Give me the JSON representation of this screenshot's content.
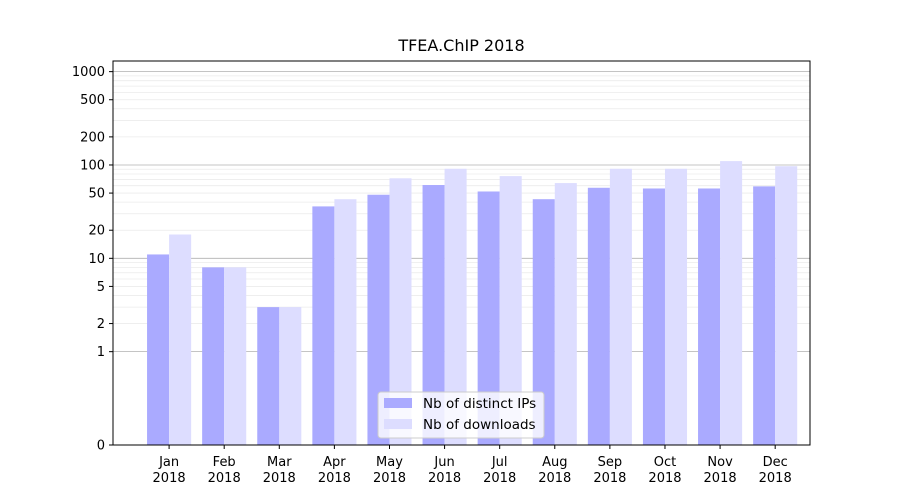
{
  "chart_data": {
    "type": "bar",
    "title": "TFEA.ChIP 2018",
    "xlabel": "",
    "ylabel": "",
    "y_scale": "symlog",
    "ylim": [
      0,
      1300
    ],
    "y_ticks": [
      0,
      1,
      2,
      5,
      10,
      20,
      50,
      100,
      200,
      500,
      1000
    ],
    "y_tick_labels": [
      "0",
      "1",
      "2",
      "5",
      "10",
      "20",
      "50",
      "100",
      "200",
      "500",
      "1000"
    ],
    "categories": [
      [
        "Jan",
        "2018"
      ],
      [
        "Feb",
        "2018"
      ],
      [
        "Mar",
        "2018"
      ],
      [
        "Apr",
        "2018"
      ],
      [
        "May",
        "2018"
      ],
      [
        "Jun",
        "2018"
      ],
      [
        "Jul",
        "2018"
      ],
      [
        "Aug",
        "2018"
      ],
      [
        "Sep",
        "2018"
      ],
      [
        "Oct",
        "2018"
      ],
      [
        "Nov",
        "2018"
      ],
      [
        "Dec",
        "2018"
      ]
    ],
    "series": [
      {
        "name": "Nb of distinct IPs",
        "color": "#aaaaff",
        "values": [
          11,
          8,
          3,
          36,
          48,
          61,
          52,
          43,
          57,
          56,
          56,
          59
        ]
      },
      {
        "name": "Nb of downloads",
        "color": "#ddddff",
        "values": [
          18,
          8,
          3,
          43,
          72,
          91,
          76,
          64,
          91,
          91,
          110,
          97
        ]
      }
    ],
    "legend_position": "lower-center",
    "grid": "horizontal"
  }
}
